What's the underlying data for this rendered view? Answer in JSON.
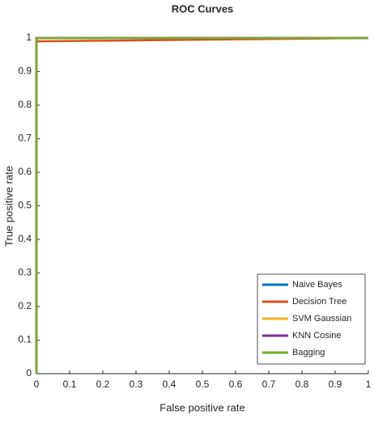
{
  "chart_data": {
    "type": "line",
    "title": "ROC Curves",
    "x_label": "False positive rate",
    "y_label": "True positive rate",
    "x": [
      0,
      0,
      1
    ],
    "series": [
      {
        "name": "Naive Bayes",
        "color": "#0072bd",
        "values": [
          0,
          1,
          1
        ]
      },
      {
        "name": "Decision Tree",
        "color": "#d95319",
        "values": [
          0,
          0.99,
          1
        ]
      },
      {
        "name": "SVM Gaussian",
        "color": "#edb120",
        "values": [
          0,
          1,
          1
        ]
      },
      {
        "name": "KNN Cosine",
        "color": "#7e2f8e",
        "values": [
          0,
          1,
          1
        ]
      },
      {
        "name": "Bagging",
        "color": "#77ac30",
        "values": [
          0,
          1,
          1
        ]
      }
    ],
    "xlim": [
      0,
      1
    ],
    "ylim": [
      0,
      1
    ],
    "xticks": [
      0,
      0.1,
      0.2,
      0.3,
      0.4,
      0.5,
      0.6,
      0.7,
      0.8,
      0.9,
      1
    ],
    "yticks": [
      0,
      0.1,
      0.2,
      0.3,
      0.4,
      0.5,
      0.6,
      0.7,
      0.8,
      0.9,
      1
    ],
    "legend": "lower right",
    "grid": false
  }
}
